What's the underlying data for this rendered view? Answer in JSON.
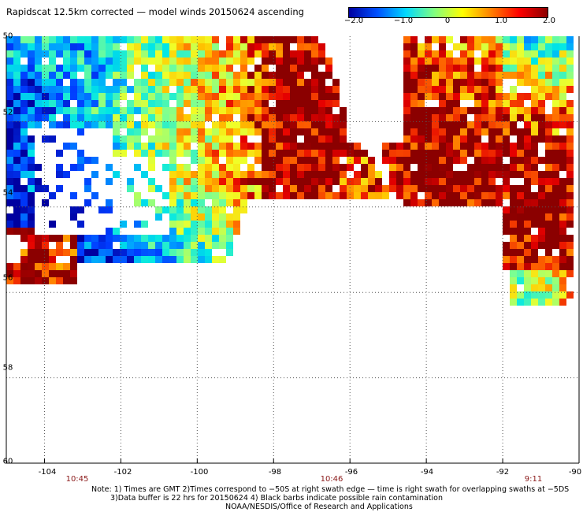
{
  "title": "Rapidscat 12.5km corrected — model winds 20150624 ascending",
  "colorbar": {
    "ticks": [
      "−2.0",
      "−1.0",
      "0",
      "1.0",
      "2.0"
    ],
    "values": [
      -2.0,
      -1.0,
      0,
      1.0,
      2.0
    ],
    "colors": [
      "#0000a0",
      "#0050ff",
      "#00d8ff",
      "#80ff80",
      "#ffff00",
      "#ff8000",
      "#ff0000",
      "#8b0000"
    ]
  },
  "map": {
    "lon_range": [
      -105,
      -90
    ],
    "lat_range": [
      -50,
      -60
    ],
    "lon_ticks": [
      "-104",
      "-102",
      "-100",
      "-98",
      "-96",
      "-94",
      "-92",
      "-90"
    ],
    "lat_ticks": [
      "-50",
      "-52",
      "-54",
      "-56",
      "-58",
      "-60"
    ],
    "y_tick_labels": [
      "50",
      "52",
      "54",
      "56",
      "58",
      "60"
    ],
    "grid_style": "dotted"
  },
  "times": [
    "10:45",
    "10:46",
    "9:11"
  ],
  "notes": {
    "line1": "Note: 1) Times are GMT 2)Times correspond to −50S at right swath edge — time is right swath for overlapping swaths at −5DS",
    "line2": "3)Data buffer is 22 hrs for 20150624 4) Black barbs indicate possible rain contamination",
    "line3": "NOAA/NESDIS/Office of Research and Applications"
  }
}
